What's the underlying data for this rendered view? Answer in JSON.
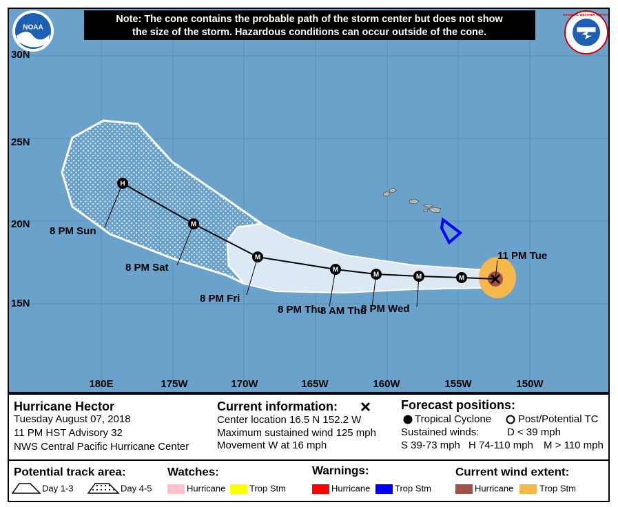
{
  "note": [
    "Note: The cone contains the probable path of the storm center but does not show",
    "the size of the storm. Hazardous conditions can occur outside of the cone."
  ],
  "logos": {
    "noaa": "NOAA",
    "nws": "NATIONAL WEATHER SERVICE"
  },
  "map": {
    "lat_labels": [
      "30N",
      "25N",
      "20N",
      "15N"
    ],
    "lon_labels": [
      "180E",
      "175W",
      "170W",
      "165W",
      "160W",
      "155W",
      "150W"
    ],
    "track_points": [
      "H",
      "M",
      "M",
      "M",
      "M",
      "M",
      "M"
    ],
    "time_labels": [
      "8 PM Sun",
      "8 PM Sat",
      "8 PM Fri",
      "8 PM Thu",
      "8 AM Thu",
      "8 PM Wed",
      "11 PM Tue"
    ]
  },
  "info": {
    "storm": {
      "name": "Hurricane Hector",
      "date": "Tuesday August 07, 2018",
      "advisory": "11 PM HST Advisory 32",
      "office": "NWS Central Pacific Hurricane Center"
    },
    "current": {
      "title": "Current information:",
      "lines": [
        "Center location 16.5 N 152.2 W",
        "Maximum sustained wind 125 mph",
        "Movement W at 16 mph"
      ]
    },
    "forecast": {
      "title": "Forecast positions:",
      "tropical": "Tropical Cyclone",
      "post": "Post/Potential TC",
      "sustained": "Sustained winds:",
      "d": "D < 39 mph",
      "s": "S 39-73 mph",
      "h": "H 74-110 mph",
      "m": "M > 110 mph"
    }
  },
  "legend": {
    "track": {
      "title": "Potential track area:",
      "day13": "Day 1-3",
      "day45": "Day 4-5"
    },
    "watches": {
      "title": "Watches:",
      "hurricane": "Hurricane",
      "trop": "Trop Stm"
    },
    "warnings": {
      "title": "Warnings:",
      "hurricane": "Hurricane",
      "trop": "Trop Stm"
    },
    "wind": {
      "title": "Current wind extent:",
      "hurricane": "Hurricane",
      "trop": "Trop Stm"
    }
  }
}
